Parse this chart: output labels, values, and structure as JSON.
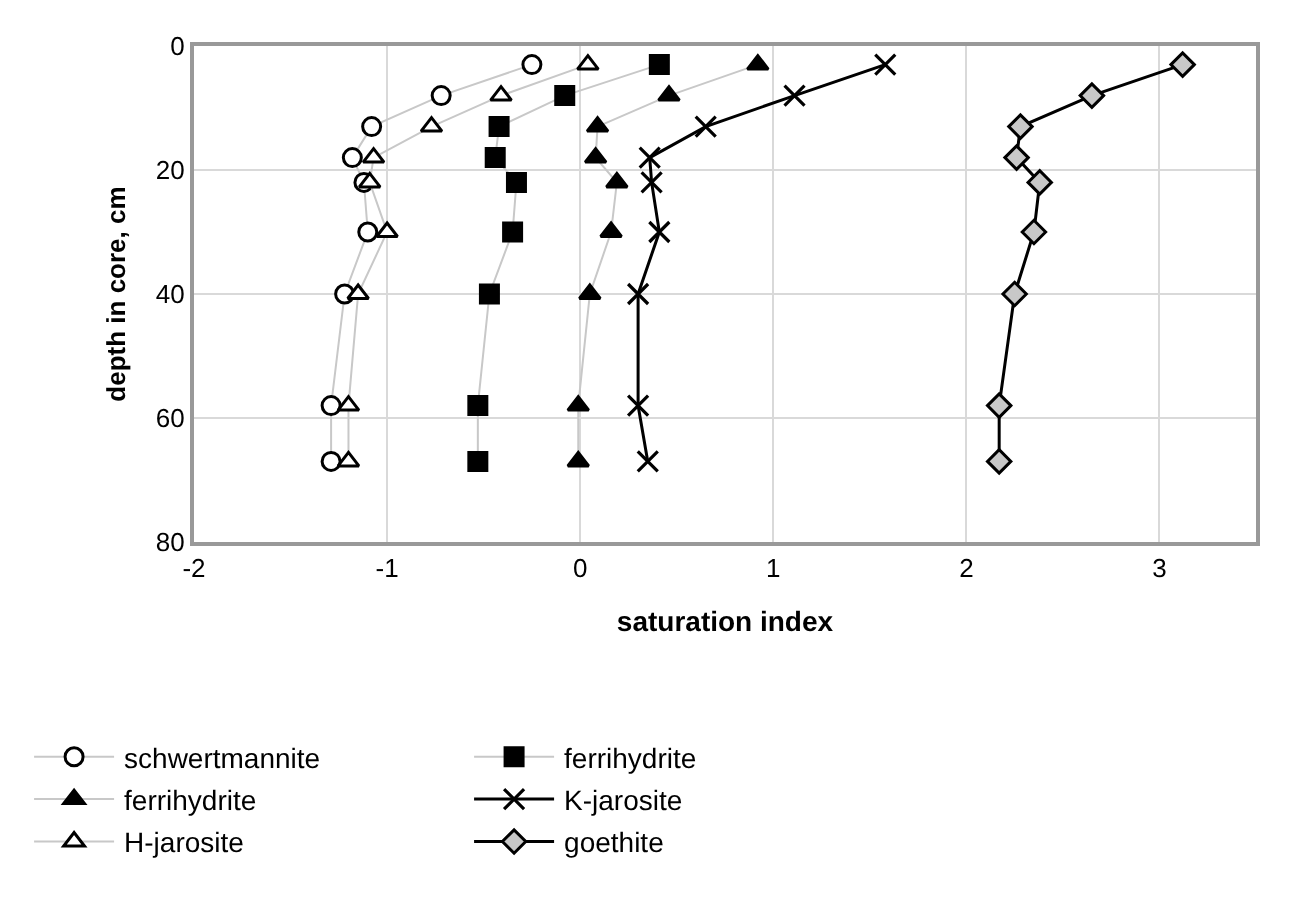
{
  "chart_data": {
    "type": "line",
    "xlabel": "saturation index",
    "ylabel": "depth in core, cm",
    "xlim": [
      -2,
      3.5
    ],
    "xticks": [
      -2,
      -1,
      0,
      1,
      2,
      3
    ],
    "ylim": [
      80,
      0
    ],
    "yticks": [
      0,
      20,
      40,
      60,
      80
    ],
    "grid": true,
    "legend": "bottom",
    "series": [
      {
        "name": "schwertmannite",
        "color": "#ffffff",
        "marker": "circle",
        "x": [
          -0.25,
          -0.72,
          -1.08,
          -1.18,
          -1.12,
          -1.1,
          -1.22,
          -1.29,
          -1.29
        ],
        "values": [
          3,
          8,
          13,
          18,
          22,
          30,
          40,
          58,
          67
        ]
      },
      {
        "name": "ferrihydrite",
        "color": "#000000",
        "marker": "square",
        "x": [
          0.41,
          -0.08,
          -0.42,
          -0.44,
          -0.33,
          -0.35,
          -0.47,
          -0.53,
          -0.53
        ],
        "values": [
          3,
          8,
          13,
          18,
          22,
          30,
          40,
          58,
          67
        ]
      },
      {
        "name": "ferrihydrite",
        "color": "#000000",
        "marker": "triangle",
        "x": [
          0.92,
          0.46,
          0.09,
          0.08,
          0.19,
          0.16,
          0.05,
          -0.01,
          -0.01
        ],
        "values": [
          3,
          8,
          13,
          18,
          22,
          30,
          40,
          58,
          67
        ]
      },
      {
        "name": "K-jarosite",
        "color": "#000000",
        "marker": "cross",
        "x": [
          1.58,
          1.11,
          0.65,
          0.36,
          0.37,
          0.41,
          0.3,
          0.3,
          0.35
        ],
        "values": [
          3,
          8,
          13,
          18,
          22,
          30,
          40,
          58,
          67
        ]
      },
      {
        "name": "H-jarosite",
        "color": "#ffffff",
        "marker": "triangle",
        "x": [
          0.04,
          -0.41,
          -0.77,
          -1.07,
          -1.09,
          -1.0,
          -1.15,
          -1.2,
          -1.2
        ],
        "values": [
          3,
          8,
          13,
          18,
          22,
          30,
          40,
          58,
          67
        ]
      },
      {
        "name": "goethite",
        "color": "#c8c8c8",
        "marker": "diamond",
        "x": [
          3.12,
          2.65,
          2.28,
          2.26,
          2.38,
          2.35,
          2.25,
          2.17,
          2.17
        ],
        "values": [
          3,
          8,
          13,
          18,
          22,
          30,
          40,
          58,
          67
        ]
      }
    ]
  }
}
